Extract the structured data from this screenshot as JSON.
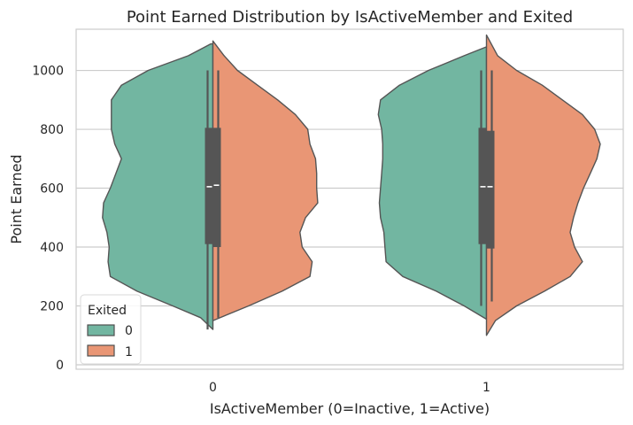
{
  "chart_data": {
    "type": "violin",
    "title": "Point Earned Distribution by IsActiveMember and Exited",
    "xlabel": "IsActiveMember (0=Inactive, 1=Active)",
    "ylabel": "Point Earned",
    "categories": [
      "0",
      "1"
    ],
    "ylim": [
      -15,
      1140
    ],
    "yticks": [
      0,
      200,
      400,
      600,
      800,
      1000
    ],
    "grid": true,
    "split": true,
    "legend": {
      "title": "Exited",
      "position": "lower-left",
      "entries": [
        "0",
        "1"
      ]
    },
    "series": [
      {
        "name": "0",
        "color": "#72b6a1",
        "groups": [
          {
            "category": "0",
            "min": 120,
            "q1": 410,
            "median": 605,
            "q3": 805,
            "max": 1000,
            "density": [
              [
                120,
                0.0
              ],
              [
                160,
                0.11
              ],
              [
                200,
                0.36
              ],
              [
                250,
                0.68
              ],
              [
                300,
                0.92
              ],
              [
                350,
                0.94
              ],
              [
                400,
                0.93
              ],
              [
                450,
                0.95
              ],
              [
                500,
                0.99
              ],
              [
                550,
                0.98
              ],
              [
                600,
                0.92
              ],
              [
                650,
                0.87
              ],
              [
                700,
                0.82
              ],
              [
                750,
                0.88
              ],
              [
                800,
                0.91
              ],
              [
                850,
                0.91
              ],
              [
                900,
                0.91
              ],
              [
                950,
                0.82
              ],
              [
                1000,
                0.58
              ],
              [
                1050,
                0.22
              ],
              [
                1090,
                0.02
              ]
            ]
          },
          {
            "category": "1",
            "min": 200,
            "q1": 410,
            "median": 605,
            "q3": 805,
            "max": 1000,
            "density": [
              [
                155,
                0.0
              ],
              [
                200,
                0.2
              ],
              [
                250,
                0.45
              ],
              [
                300,
                0.75
              ],
              [
                350,
                0.9
              ],
              [
                400,
                0.91
              ],
              [
                450,
                0.92
              ],
              [
                500,
                0.95
              ],
              [
                550,
                0.96
              ],
              [
                600,
                0.95
              ],
              [
                650,
                0.94
              ],
              [
                700,
                0.93
              ],
              [
                750,
                0.93
              ],
              [
                800,
                0.94
              ],
              [
                850,
                0.97
              ],
              [
                900,
                0.95
              ],
              [
                950,
                0.78
              ],
              [
                1000,
                0.52
              ],
              [
                1050,
                0.2
              ],
              [
                1080,
                0.0
              ]
            ]
          }
        ]
      },
      {
        "name": "1",
        "color": "#e99675",
        "groups": [
          {
            "category": "0",
            "min": 160,
            "q1": 400,
            "median": 610,
            "q3": 805,
            "max": 1000,
            "density": [
              [
                150,
                0.0
              ],
              [
                200,
                0.32
              ],
              [
                250,
                0.62
              ],
              [
                300,
                0.87
              ],
              [
                350,
                0.89
              ],
              [
                400,
                0.8
              ],
              [
                450,
                0.78
              ],
              [
                500,
                0.83
              ],
              [
                550,
                0.94
              ],
              [
                600,
                0.93
              ],
              [
                650,
                0.93
              ],
              [
                700,
                0.92
              ],
              [
                750,
                0.87
              ],
              [
                800,
                0.85
              ],
              [
                850,
                0.74
              ],
              [
                900,
                0.58
              ],
              [
                950,
                0.4
              ],
              [
                1000,
                0.22
              ],
              [
                1050,
                0.1
              ],
              [
                1100,
                0.0
              ]
            ]
          },
          {
            "category": "1",
            "min": 215,
            "q1": 395,
            "median": 605,
            "q3": 795,
            "max": 1000,
            "density": [
              [
                100,
                0.0
              ],
              [
                150,
                0.08
              ],
              [
                200,
                0.27
              ],
              [
                250,
                0.52
              ],
              [
                300,
                0.75
              ],
              [
                350,
                0.86
              ],
              [
                400,
                0.79
              ],
              [
                450,
                0.75
              ],
              [
                500,
                0.78
              ],
              [
                550,
                0.82
              ],
              [
                600,
                0.87
              ],
              [
                650,
                0.93
              ],
              [
                700,
                0.99
              ],
              [
                750,
                1.02
              ],
              [
                800,
                0.97
              ],
              [
                850,
                0.86
              ],
              [
                900,
                0.68
              ],
              [
                950,
                0.5
              ],
              [
                1000,
                0.27
              ],
              [
                1050,
                0.1
              ],
              [
                1120,
                0.0
              ]
            ]
          }
        ]
      }
    ]
  }
}
